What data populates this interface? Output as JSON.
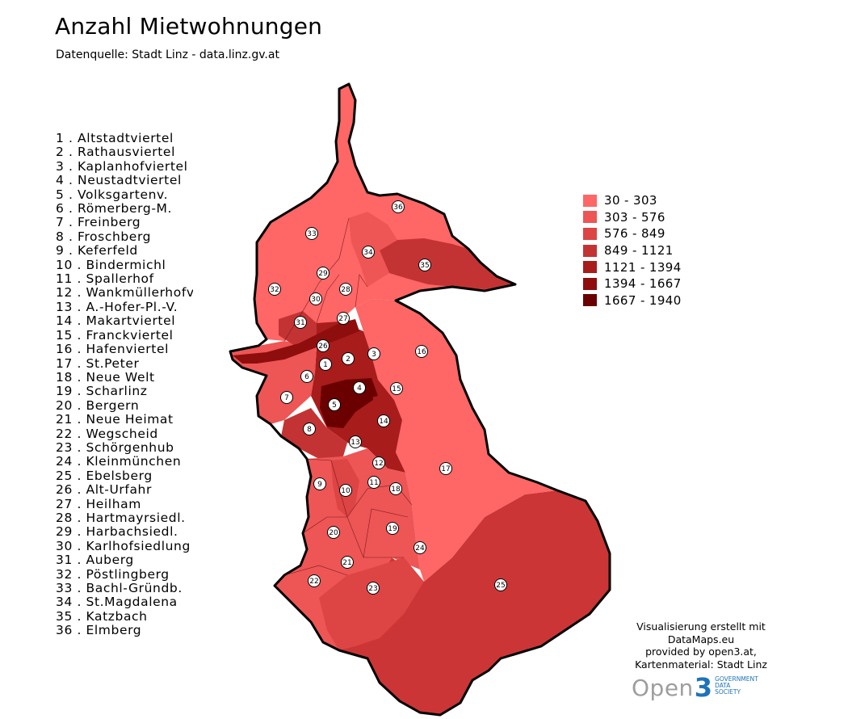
{
  "title": "Anzahl Mietwohnungen",
  "subtitle": "Datenquelle: Stadt Linz - data.linz.gv.at",
  "districts": [
    "1 . Altstadtviertel",
    "2 .  Rathausviertel",
    "3 . Kaplanhofviertel",
    "4 .  Neustadtviertel",
    "5 . Volksgartenv.",
    "6 .  Römerberg-M.",
    "7 . Freinberg",
    "8 . Froschberg",
    "9 . Keferfeld",
    "10 . Bindermichl",
    "11 . Spallerhof",
    "12 . Wankmüllerhofv",
    "13 . A.-Hofer-Pl.-V.",
    "14 . Makartviertel",
    "15 . Franckviertel",
    "16 .  Hafenviertel",
    "17 . St.Peter",
    "18 .  Neue Welt",
    "19 . Scharlinz",
    "20 . Bergern",
    "21 .  Neue Heimat",
    "22 . Wegscheid",
    "23 . Schörgenhub",
    "24 . Kleinmünchen",
    "25 . Ebelsberg",
    "26 . Alt-Urfahr",
    "27 .  Heilham",
    "28 .  Hartmayrsiedl.",
    "29 .  Harbachsiedl.",
    "30 . Karlhofsiedlung",
    "31 . Auberg",
    "32 . Pöstlingberg",
    "33 . Bachl-Gründb.",
    "34 . St.Magdalena",
    "35 . Katzbach",
    "36 . Elmberg"
  ],
  "legend": [
    {
      "label": "30 - 303",
      "color": "#ff6666"
    },
    {
      "label": "303 - 576",
      "color": "#ee5555"
    },
    {
      "label": "576 - 849",
      "color": "#dd4444"
    },
    {
      "label": "849 - 1121",
      "color": "#c43333"
    },
    {
      "label": "1121 - 1394",
      "color": "#a81c1c"
    },
    {
      "label": "1394 - 1667",
      "color": "#8e0e0e"
    },
    {
      "label": "1667 - 1940",
      "color": "#6a0000"
    }
  ],
  "district_markers": [
    "1",
    "2",
    "3",
    "4",
    "5",
    "6",
    "7",
    "8",
    "9",
    "10",
    "11",
    "12",
    "13",
    "14",
    "15",
    "16",
    "17",
    "18",
    "19",
    "20",
    "21",
    "22",
    "23",
    "24",
    "25",
    "26",
    "27",
    "28",
    "29",
    "30",
    "31",
    "32",
    "33",
    "34",
    "35",
    "36"
  ],
  "credits": [
    "Visualisierung erstellt mit",
    "DataMaps.eu",
    "provided by open3.at,",
    "Kartenmaterial: Stadt Linz"
  ],
  "logo": {
    "word": "Open",
    "number": "3",
    "small_lines": [
      "GOVERNMENT",
      "DATA",
      "SOCIETY"
    ]
  }
}
